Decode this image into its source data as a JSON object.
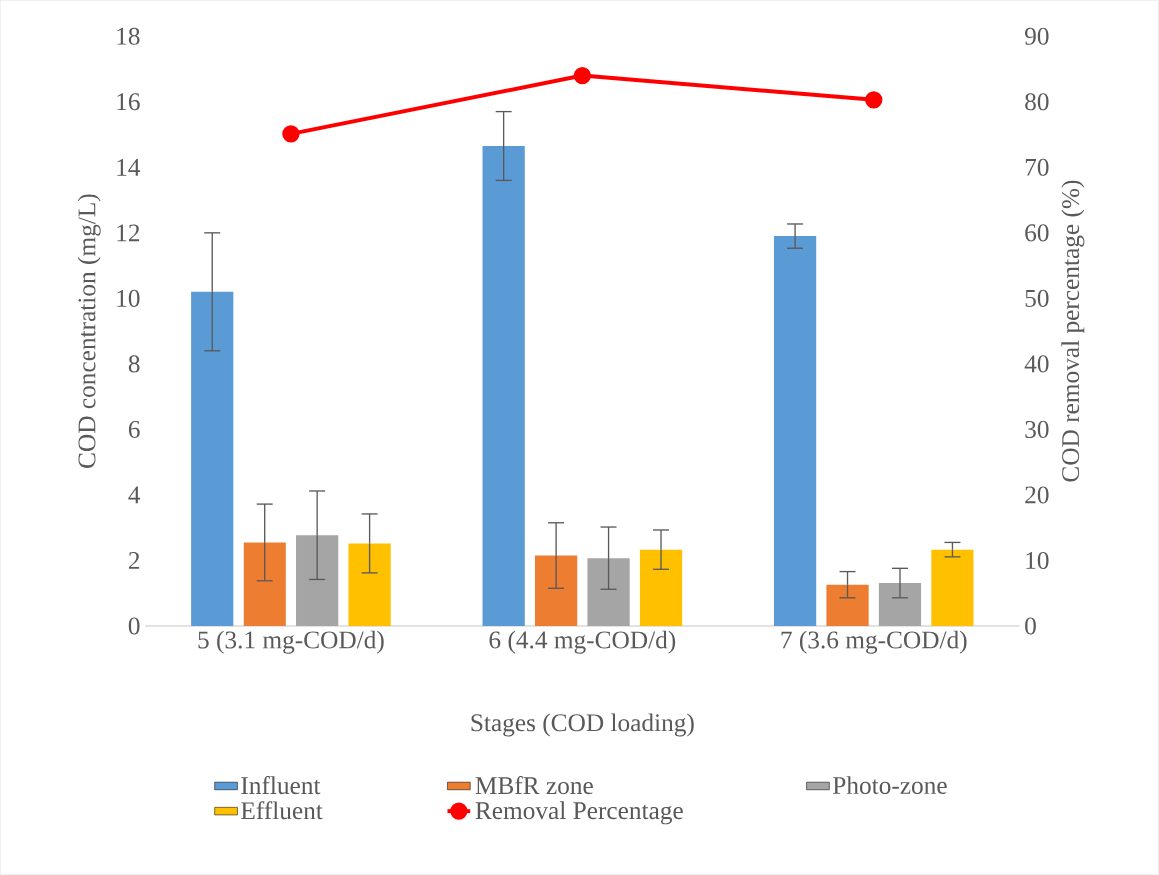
{
  "chart_data": {
    "type": "bar",
    "xlabel": "Stages (COD loading)",
    "ylabel": "COD concentration (mg/L)",
    "y2label": "COD removal percentage (%)",
    "categories": [
      "5 (3.1 mg-COD/d)",
      "6 (4.4 mg-COD/d)",
      "7 (3.6 mg-COD/d)"
    ],
    "series": [
      {
        "name": "Influent",
        "color": "#5b9bd5",
        "values": [
          10.2,
          14.65,
          11.9
        ],
        "errors": [
          1.8,
          1.05,
          0.37
        ]
      },
      {
        "name": "MBfR zone",
        "color": "#ed7d31",
        "values": [
          2.55,
          2.15,
          1.26
        ],
        "errors": [
          1.17,
          1.0,
          0.4
        ]
      },
      {
        "name": "Photo-zone",
        "color": "#a5a5a5",
        "values": [
          2.77,
          2.07,
          1.31
        ],
        "errors": [
          1.35,
          0.95,
          0.45
        ]
      },
      {
        "name": "Effluent",
        "color": "#ffc000",
        "values": [
          2.52,
          2.33,
          2.33
        ],
        "errors": [
          0.9,
          0.6,
          0.22
        ]
      },
      {
        "name": "Removal Percentage",
        "color": "#ff0000",
        "type": "line",
        "axis": "y2",
        "values": [
          75.1,
          84.0,
          80.3
        ]
      }
    ],
    "ylim": [
      0,
      18
    ],
    "yticks": [
      0,
      2,
      4,
      6,
      8,
      10,
      12,
      14,
      16,
      18
    ],
    "y2lim": [
      0,
      90
    ],
    "y2ticks": [
      0,
      10,
      20,
      30,
      40,
      50,
      60,
      70,
      80,
      90
    ],
    "marker": "circle",
    "legend": "bottom"
  }
}
